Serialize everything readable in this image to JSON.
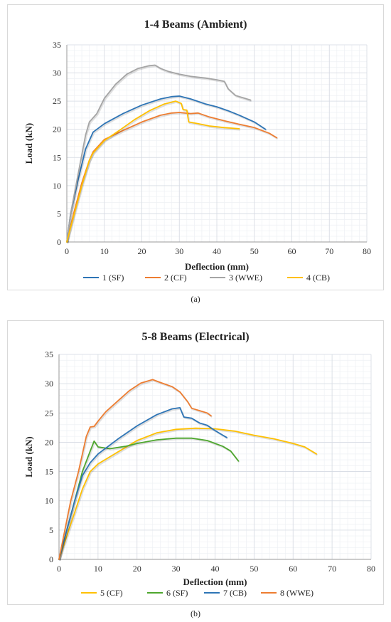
{
  "chart_data": [
    {
      "type": "line",
      "title": "1-4 Beams (Ambient)",
      "xlabel": "Deflection (mm)",
      "ylabel": "Load (kN)",
      "xlim": [
        0,
        80
      ],
      "ylim": [
        0,
        35
      ],
      "xticks": [
        0,
        10,
        20,
        30,
        40,
        50,
        60,
        70,
        80
      ],
      "yticks": [
        0,
        5,
        10,
        15,
        20,
        25,
        30,
        35
      ],
      "grid": true,
      "legend": "bottom",
      "caption": "(a)",
      "series": [
        {
          "name": "1 (SF)",
          "color": "#2E75B6",
          "points": [
            [
              0,
              0
            ],
            [
              1,
              5
            ],
            [
              3,
              11
            ],
            [
              5,
              16.5
            ],
            [
              7,
              19.5
            ],
            [
              10,
              21
            ],
            [
              15,
              22.8
            ],
            [
              20,
              24.3
            ],
            [
              25,
              25.4
            ],
            [
              28,
              25.8
            ],
            [
              30,
              25.9
            ],
            [
              33,
              25.4
            ],
            [
              37,
              24.5
            ],
            [
              40,
              24.0
            ],
            [
              43,
              23.3
            ],
            [
              46,
              22.5
            ],
            [
              50,
              21.3
            ],
            [
              53,
              20.0
            ]
          ]
        },
        {
          "name": "2 (CF)",
          "color": "#ED7D31",
          "points": [
            [
              0,
              0
            ],
            [
              2,
              5.5
            ],
            [
              4,
              10.5
            ],
            [
              6,
              14.5
            ],
            [
              7,
              16
            ],
            [
              10,
              18.2
            ],
            [
              15,
              19.8
            ],
            [
              20,
              21.3
            ],
            [
              25,
              22.5
            ],
            [
              28,
              22.9
            ],
            [
              30,
              23.0
            ],
            [
              33,
              22.8
            ],
            [
              35,
              22.9
            ],
            [
              38,
              22.2
            ],
            [
              42,
              21.5
            ],
            [
              46,
              20.9
            ],
            [
              50,
              20.3
            ],
            [
              54,
              19.3
            ],
            [
              56,
              18.5
            ]
          ]
        },
        {
          "name": "3 (WWE)",
          "color": "#A5A5A5",
          "points": [
            [
              0,
              0
            ],
            [
              1,
              5
            ],
            [
              3,
              12
            ],
            [
              5,
              19
            ],
            [
              6,
              21.3
            ],
            [
              8,
              22.8
            ],
            [
              10,
              25.5
            ],
            [
              13,
              28
            ],
            [
              16,
              29.8
            ],
            [
              19,
              30.8
            ],
            [
              22,
              31.3
            ],
            [
              23.5,
              31.4
            ],
            [
              25,
              30.8
            ],
            [
              27,
              30.3
            ],
            [
              30,
              29.8
            ],
            [
              33,
              29.4
            ],
            [
              37,
              29.1
            ],
            [
              40,
              28.8
            ],
            [
              42,
              28.5
            ],
            [
              43,
              27.2
            ],
            [
              45,
              26
            ],
            [
              47,
              25.6
            ],
            [
              49,
              25.2
            ]
          ]
        },
        {
          "name": "4 (CB)",
          "color": "#FFC000",
          "points": [
            [
              0,
              0
            ],
            [
              2,
              5
            ],
            [
              4,
              10
            ],
            [
              6,
              14.5
            ],
            [
              7,
              15.8
            ],
            [
              10,
              18
            ],
            [
              14,
              19.8
            ],
            [
              18,
              21.7
            ],
            [
              22,
              23.3
            ],
            [
              26,
              24.5
            ],
            [
              29,
              25.0
            ],
            [
              30.5,
              24.6
            ],
            [
              31,
              23.5
            ],
            [
              32,
              23.4
            ],
            [
              32.5,
              21.3
            ],
            [
              35,
              21.0
            ],
            [
              38,
              20.6
            ],
            [
              42,
              20.3
            ],
            [
              46,
              20.1
            ]
          ]
        }
      ]
    },
    {
      "type": "line",
      "title": "5-8 Beams (Electrical)",
      "xlabel": "Deflection (mm)",
      "ylabel": "Load (kN)",
      "xlim": [
        0,
        80
      ],
      "ylim": [
        0,
        35
      ],
      "xticks": [
        0,
        10,
        20,
        30,
        40,
        50,
        60,
        70,
        80
      ],
      "yticks": [
        0,
        5,
        10,
        15,
        20,
        25,
        30,
        35
      ],
      "grid": true,
      "legend": "bottom",
      "caption": "(b)",
      "series": [
        {
          "name": "5 (CF)",
          "color": "#FFC000",
          "points": [
            [
              0,
              0
            ],
            [
              3,
              6
            ],
            [
              6,
              12
            ],
            [
              8,
              15
            ],
            [
              10,
              16.3
            ],
            [
              15,
              18.3
            ],
            [
              20,
              20.3
            ],
            [
              25,
              21.6
            ],
            [
              30,
              22.2
            ],
            [
              35,
              22.4
            ],
            [
              40,
              22.3
            ],
            [
              45,
              21.9
            ],
            [
              50,
              21.2
            ],
            [
              55,
              20.6
            ],
            [
              60,
              19.8
            ],
            [
              63,
              19.2
            ],
            [
              66,
              18.0
            ]
          ]
        },
        {
          "name": "6 (SF)",
          "color": "#4EA72E",
          "points": [
            [
              0,
              0
            ],
            [
              2,
              5
            ],
            [
              4,
              10
            ],
            [
              6,
              15
            ],
            [
              8,
              18.5
            ],
            [
              9,
              20.2
            ],
            [
              10,
              19.2
            ],
            [
              13,
              18.9
            ],
            [
              17,
              19.3
            ],
            [
              20,
              19.8
            ],
            [
              25,
              20.4
            ],
            [
              30,
              20.7
            ],
            [
              34,
              20.7
            ],
            [
              38,
              20.3
            ],
            [
              42,
              19.3
            ],
            [
              44,
              18.5
            ],
            [
              46,
              16.8
            ]
          ]
        },
        {
          "name": "7 (CB)",
          "color": "#2E75B6",
          "points": [
            [
              0,
              0
            ],
            [
              2,
              5
            ],
            [
              4,
              10
            ],
            [
              6,
              14.3
            ],
            [
              8,
              16.5
            ],
            [
              10,
              18
            ],
            [
              15,
              20.5
            ],
            [
              20,
              22.8
            ],
            [
              25,
              24.7
            ],
            [
              29,
              25.7
            ],
            [
              31,
              25.9
            ],
            [
              32,
              24.3
            ],
            [
              34,
              24.1
            ],
            [
              36,
              23.3
            ],
            [
              38,
              22.9
            ],
            [
              40,
              22.0
            ],
            [
              42,
              21.2
            ],
            [
              43,
              20.8
            ]
          ]
        },
        {
          "name": "8 (WWE)",
          "color": "#ED7D31",
          "points": [
            [
              0,
              0
            ],
            [
              1.5,
              5
            ],
            [
              3,
              10
            ],
            [
              5,
              15
            ],
            [
              7,
              21
            ],
            [
              8,
              22.6
            ],
            [
              9,
              22.7
            ],
            [
              10,
              23.6
            ],
            [
              12,
              25.2
            ],
            [
              15,
              27
            ],
            [
              18,
              28.8
            ],
            [
              21,
              30.1
            ],
            [
              24,
              30.7
            ],
            [
              26,
              30.2
            ],
            [
              29,
              29.5
            ],
            [
              31,
              28.6
            ],
            [
              33,
              26.9
            ],
            [
              34,
              25.8
            ],
            [
              36,
              25.4
            ],
            [
              38,
              25
            ],
            [
              39,
              24.5
            ]
          ]
        }
      ]
    }
  ]
}
